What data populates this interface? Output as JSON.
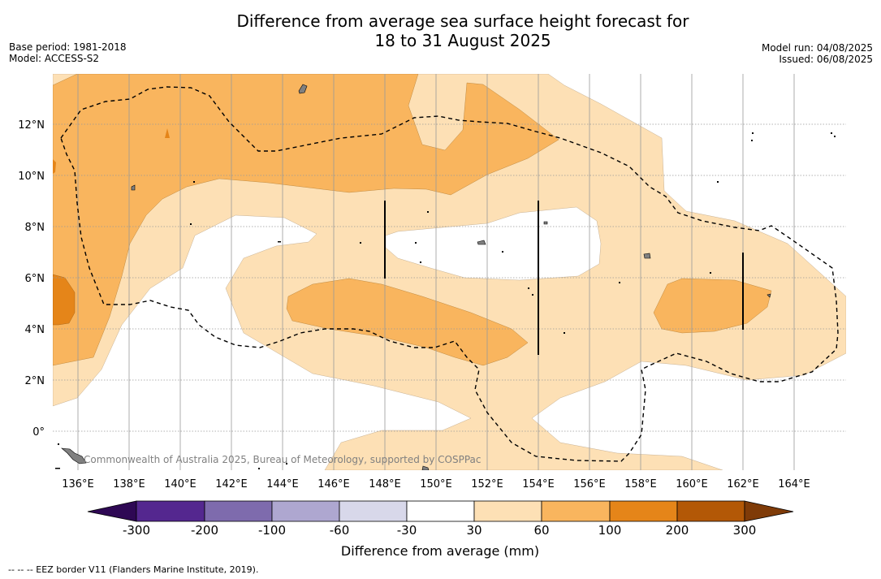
{
  "title": {
    "line1": "Difference from average sea surface height forecast for",
    "line2": "18 to 31 August 2025"
  },
  "meta_left": {
    "base_period": "Base period: 1981-2018",
    "model": "Model: ACCESS-S2"
  },
  "meta_right": {
    "model_run": "Model run: 04/08/2025",
    "issued": "Issued: 06/08/2025"
  },
  "credit": "Commonwealth of Australia 2025, Bureau of Meteorology, supported by COSPPac",
  "footnote": "--  --  -- EEZ border V11 (Flanders Marine Institute, 2019).",
  "map": {
    "lon_ticks": [
      "136°E",
      "138°E",
      "140°E",
      "142°E",
      "144°E",
      "146°E",
      "148°E",
      "150°E",
      "152°E",
      "154°E",
      "156°E",
      "158°E",
      "160°E",
      "162°E",
      "164°E"
    ],
    "lat_ticks": [
      "12°N",
      "10°N",
      "8°N",
      "6°N",
      "4°N",
      "2°N",
      "0°"
    ],
    "lon_range": [
      135,
      166
    ],
    "lat_range": [
      -1.5,
      14
    ],
    "grid": true
  },
  "colors": {
    "c30_60": "#fde0b5",
    "c60_100": "#f9b55e",
    "c100_200": "#e58519",
    "land": "#808080"
  },
  "colorbar": {
    "label": "Difference from average (mm)",
    "ticks": [
      "-300",
      "-200",
      "-100",
      "-60",
      "-30",
      "30",
      "60",
      "100",
      "200",
      "300"
    ],
    "bins": [
      {
        "range": "< -300",
        "color": "#2e0854"
      },
      {
        "range": "-300 to -200",
        "color": "#54278f"
      },
      {
        "range": "-200 to -100",
        "color": "#7e6bad"
      },
      {
        "range": "-100 to -60",
        "color": "#aea7d0"
      },
      {
        "range": "-60 to -30",
        "color": "#d8d8ea"
      },
      {
        "range": "-30 to 30",
        "color": "#ffffff"
      },
      {
        "range": "30 to 60",
        "color": "#fde0b5"
      },
      {
        "range": "60 to 100",
        "color": "#f9b55e"
      },
      {
        "range": "100 to 200",
        "color": "#e58519"
      },
      {
        "range": "200 to 300",
        "color": "#b35806"
      },
      {
        "range": "> 300",
        "color": "#7f3b08"
      }
    ]
  }
}
